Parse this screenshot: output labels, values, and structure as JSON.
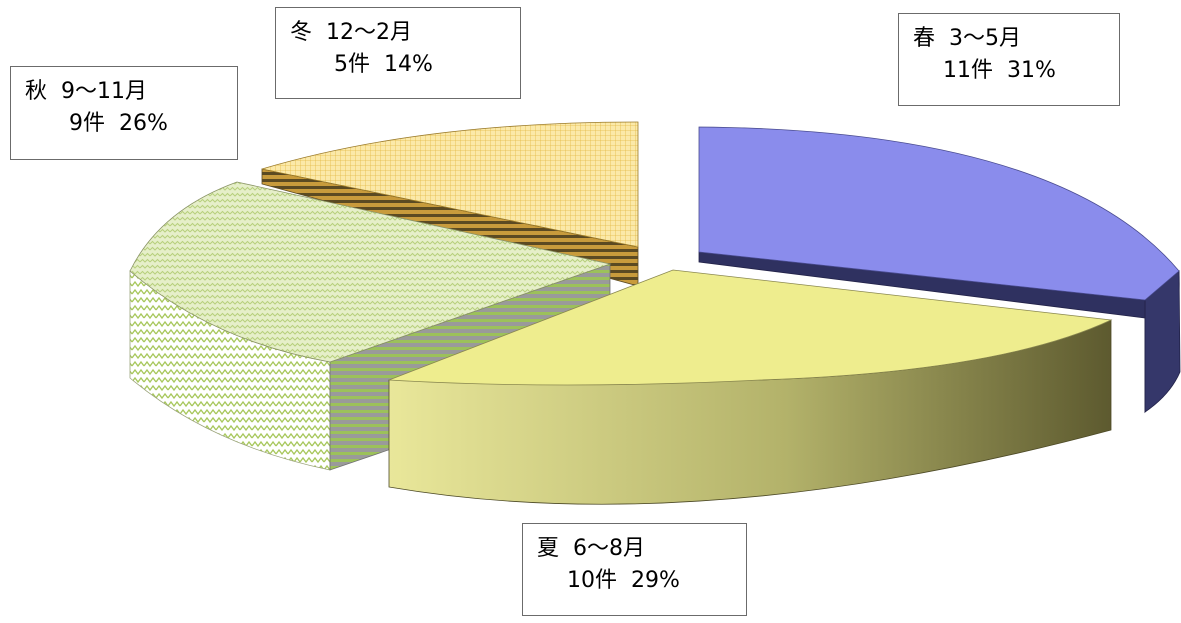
{
  "chart_data": {
    "type": "pie",
    "style": "3d-exploded",
    "slices": [
      {
        "season": "春",
        "months": "3～5月",
        "count": 11,
        "percent": 31,
        "count_text": "11件",
        "percent_text": "31%",
        "color": "#8a8cec",
        "side_color": "#3b3d73"
      },
      {
        "season": "夏",
        "months": "6～8月",
        "count": 10,
        "percent": 29,
        "count_text": "10件",
        "percent_text": "29%",
        "color": "#eeed8e",
        "side_color": "#6f6b3c"
      },
      {
        "season": "秋",
        "months": "9～11月",
        "count": 9,
        "percent": 26,
        "count_text": "9件",
        "percent_text": "26%",
        "color": "#dde9b8",
        "side_color": "#a5c25a"
      },
      {
        "season": "冬",
        "months": "12～2月",
        "count": 5,
        "percent": 14,
        "count_text": "5件",
        "percent_text": "14%",
        "color": "#f7df8f",
        "side_color": "#8a6a1c"
      }
    ]
  }
}
